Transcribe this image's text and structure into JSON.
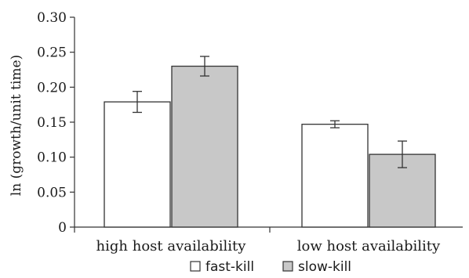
{
  "chart_data": {
    "type": "bar",
    "title": "",
    "xlabel": "",
    "ylabel": "ln (growth/unit time)",
    "ylim": [
      0,
      0.3
    ],
    "yticks": [
      "0",
      "0.05",
      "0.10",
      "0.15",
      "0.20",
      "0.25",
      "0.30"
    ],
    "ytick_values": [
      0,
      0.05,
      0.1,
      0.15,
      0.2,
      0.25,
      0.3
    ],
    "categories": [
      "high host availability",
      "low host availability"
    ],
    "series": [
      {
        "name": "fast-kill",
        "color": "#ffffff",
        "values": [
          0.179,
          0.147
        ],
        "error": [
          0.015,
          0.005
        ]
      },
      {
        "name": "slow-kill",
        "color": "#c8c8c8",
        "values": [
          0.23,
          0.104
        ],
        "error": [
          0.014,
          0.019
        ]
      }
    ],
    "grid": false,
    "legend_position": "bottom-center"
  }
}
